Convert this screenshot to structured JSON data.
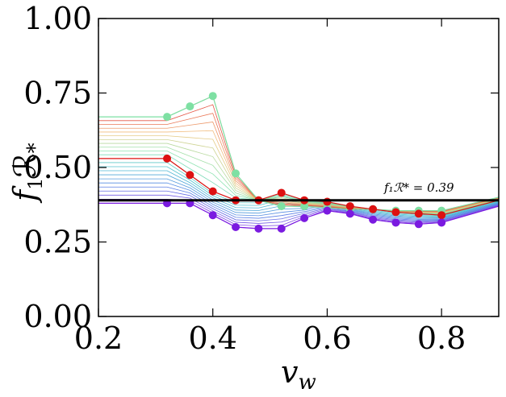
{
  "chart_data": {
    "type": "line",
    "xlabel_main": "v",
    "xlabel_sub": "w",
    "ylabel_f": "f",
    "ylabel_sub": "1",
    "ylabel_R": "ℛ",
    "ylabel_star": "*",
    "xlim": [
      0.2,
      0.9
    ],
    "ylim": [
      0.0,
      1.0
    ],
    "xticks": [
      0.2,
      0.4,
      0.6,
      0.8
    ],
    "xtick_labels": [
      "0.2",
      "0.4",
      "0.6",
      "0.8"
    ],
    "yticks": [
      0.0,
      0.25,
      0.5,
      0.75,
      1.0
    ],
    "ytick_labels": [
      "0.00",
      "0.25",
      "0.50",
      "0.75",
      "1.00"
    ],
    "reference_line": {
      "y": 0.39,
      "color": "#000000"
    },
    "annotation": "f₁ℛ* = 0.39",
    "x": [
      0.2,
      0.32,
      0.36,
      0.4,
      0.44,
      0.48,
      0.52,
      0.56,
      0.6,
      0.64,
      0.68,
      0.72,
      0.76,
      0.8,
      0.9
    ],
    "colors": {
      "top": "#7ee0a3",
      "mid": "#dd1111",
      "bottom": "#7a1ae0"
    },
    "series": [
      {
        "color": "#7ee0a3",
        "values": [
          0.67,
          0.67,
          0.705,
          0.74,
          0.48,
          0.39,
          0.37,
          0.37,
          0.365,
          0.36,
          0.36,
          0.355,
          0.355,
          0.355,
          0.4
        ],
        "markers": true
      },
      {
        "color": "#dd1111",
        "values": [
          0.53,
          0.53,
          0.475,
          0.42,
          0.39,
          0.39,
          0.415,
          0.39,
          0.385,
          0.37,
          0.36,
          0.35,
          0.345,
          0.34,
          0.39
        ],
        "markers": true
      },
      {
        "color": "#7a1ae0",
        "values": [
          0.38,
          0.38,
          0.38,
          0.34,
          0.3,
          0.295,
          0.295,
          0.33,
          0.355,
          0.345,
          0.325,
          0.315,
          0.31,
          0.315,
          0.37
        ],
        "markers": true
      }
    ]
  }
}
